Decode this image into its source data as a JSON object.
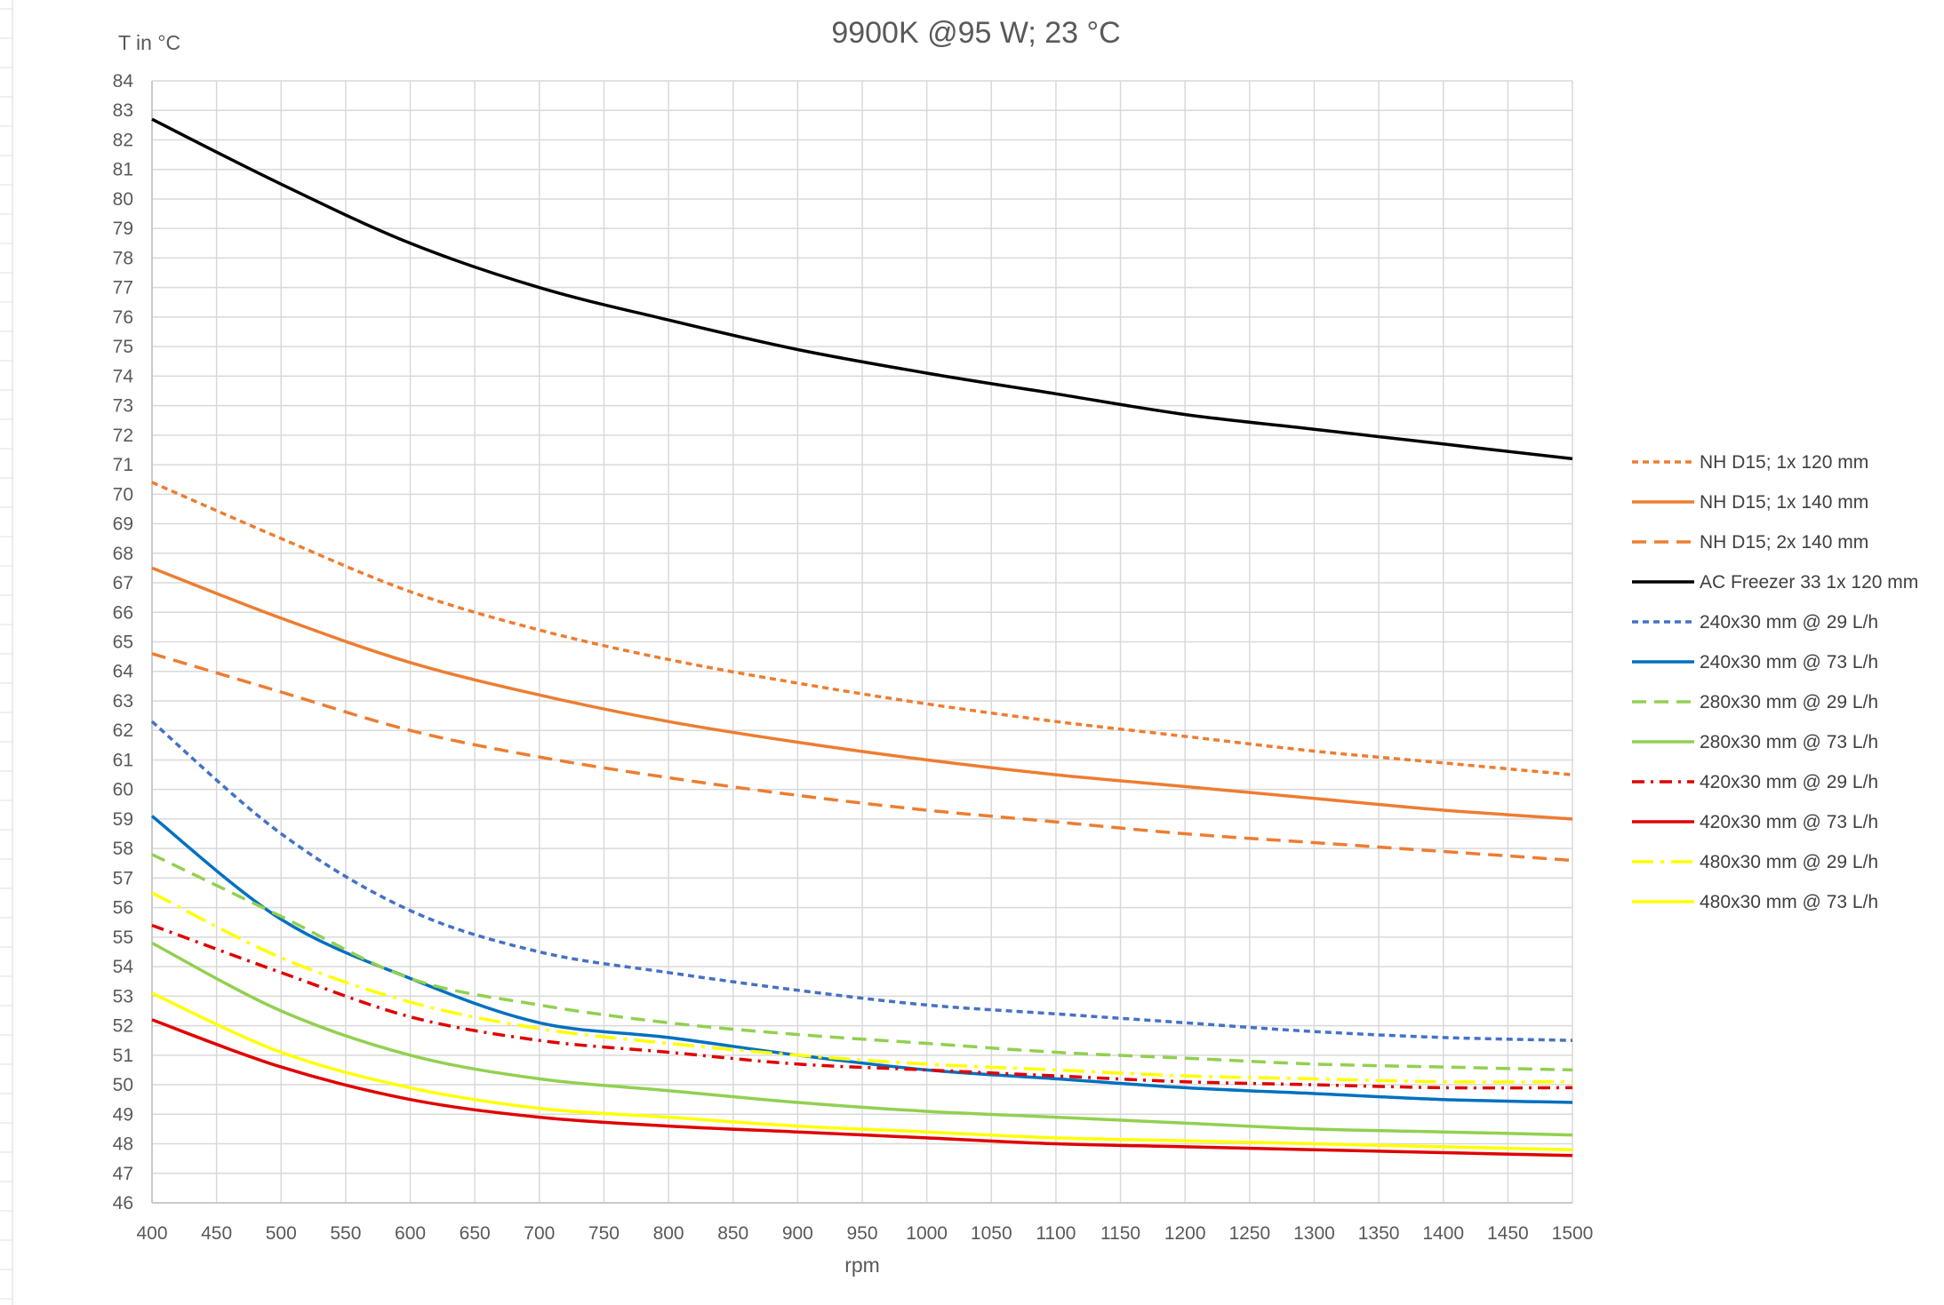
{
  "chart_data": {
    "type": "line",
    "title": "9900K @95 W; 23 °C",
    "xlabel": "rpm",
    "ylabel": "T in °C",
    "xlim": [
      400,
      1500
    ],
    "ylim": [
      46,
      84
    ],
    "x_ticks": [
      400,
      450,
      500,
      550,
      600,
      650,
      700,
      750,
      800,
      850,
      900,
      950,
      1000,
      1050,
      1100,
      1150,
      1200,
      1250,
      1300,
      1350,
      1400,
      1450,
      1500
    ],
    "y_ticks": [
      46,
      47,
      48,
      49,
      50,
      51,
      52,
      53,
      54,
      55,
      56,
      57,
      58,
      59,
      60,
      61,
      62,
      63,
      64,
      65,
      66,
      67,
      68,
      69,
      70,
      71,
      72,
      73,
      74,
      75,
      76,
      77,
      78,
      79,
      80,
      81,
      82,
      83,
      84
    ],
    "grid": true,
    "legend_position": "right",
    "x": [
      400,
      500,
      600,
      700,
      800,
      900,
      1000,
      1100,
      1200,
      1300,
      1400,
      1500
    ],
    "series": [
      {
        "name": "NH D15; 1x 120 mm",
        "color": "#ED7D31",
        "dash": "dotted",
        "values": [
          70.4,
          68.5,
          66.7,
          65.4,
          64.4,
          63.6,
          62.9,
          62.3,
          61.8,
          61.3,
          60.9,
          60.5
        ]
      },
      {
        "name": "NH D15; 1x 140 mm",
        "color": "#ED7D31",
        "dash": "solid",
        "values": [
          67.5,
          65.8,
          64.3,
          63.2,
          62.3,
          61.6,
          61.0,
          60.5,
          60.1,
          59.7,
          59.3,
          59.0
        ]
      },
      {
        "name": "NH D15; 2x 140 mm",
        "color": "#ED7D31",
        "dash": "dashed",
        "values": [
          64.6,
          63.3,
          62.0,
          61.1,
          60.4,
          59.8,
          59.3,
          58.9,
          58.5,
          58.2,
          57.9,
          57.6
        ]
      },
      {
        "name": "AC Freezer 33 1x 120 mm",
        "color": "#000000",
        "dash": "solid",
        "values": [
          82.7,
          80.5,
          78.5,
          77.0,
          75.9,
          74.9,
          74.1,
          73.4,
          72.7,
          72.2,
          71.7,
          71.2
        ]
      },
      {
        "name": "240x30 mm @ 29 L/h",
        "color": "#4472C4",
        "dash": "dotted",
        "values": [
          62.3,
          58.5,
          55.9,
          54.5,
          53.8,
          53.2,
          52.7,
          52.4,
          52.1,
          51.8,
          51.6,
          51.5
        ]
      },
      {
        "name": "240x30 mm @ 73 L/h",
        "color": "#0070C0",
        "dash": "solid",
        "values": [
          59.1,
          55.6,
          53.6,
          52.1,
          51.6,
          51.0,
          50.5,
          50.2,
          49.9,
          49.7,
          49.5,
          49.4
        ]
      },
      {
        "name": "280x30 mm @ 29 L/h",
        "color": "#92D050",
        "dash": "dashed",
        "values": [
          57.8,
          55.7,
          53.6,
          52.7,
          52.1,
          51.7,
          51.4,
          51.1,
          50.9,
          50.7,
          50.6,
          50.5
        ]
      },
      {
        "name": "280x30 mm @ 73 L/h",
        "color": "#92D050",
        "dash": "solid",
        "values": [
          54.8,
          52.5,
          51.0,
          50.2,
          49.8,
          49.4,
          49.1,
          48.9,
          48.7,
          48.5,
          48.4,
          48.3
        ]
      },
      {
        "name": "420x30 mm @ 29 L/h",
        "color": "#E00000",
        "dash": "dashdot",
        "values": [
          55.4,
          53.8,
          52.3,
          51.5,
          51.1,
          50.7,
          50.5,
          50.3,
          50.1,
          50.0,
          49.9,
          49.9
        ]
      },
      {
        "name": "420x30 mm @ 73 L/h",
        "color": "#E00000",
        "dash": "solid",
        "values": [
          52.2,
          50.6,
          49.5,
          48.9,
          48.6,
          48.4,
          48.2,
          48.0,
          47.9,
          47.8,
          47.7,
          47.6
        ]
      },
      {
        "name": "480x30 mm @ 29 L/h",
        "color": "#FFFF00",
        "dash": "longdashdot",
        "values": [
          56.5,
          54.3,
          52.8,
          51.9,
          51.4,
          51.0,
          50.7,
          50.5,
          50.3,
          50.2,
          50.1,
          50.1
        ]
      },
      {
        "name": "480x30 mm @ 73 L/h",
        "color": "#FFFF00",
        "dash": "solid",
        "values": [
          53.1,
          51.1,
          49.9,
          49.2,
          48.9,
          48.6,
          48.4,
          48.2,
          48.1,
          48.0,
          47.9,
          47.8
        ]
      }
    ]
  }
}
